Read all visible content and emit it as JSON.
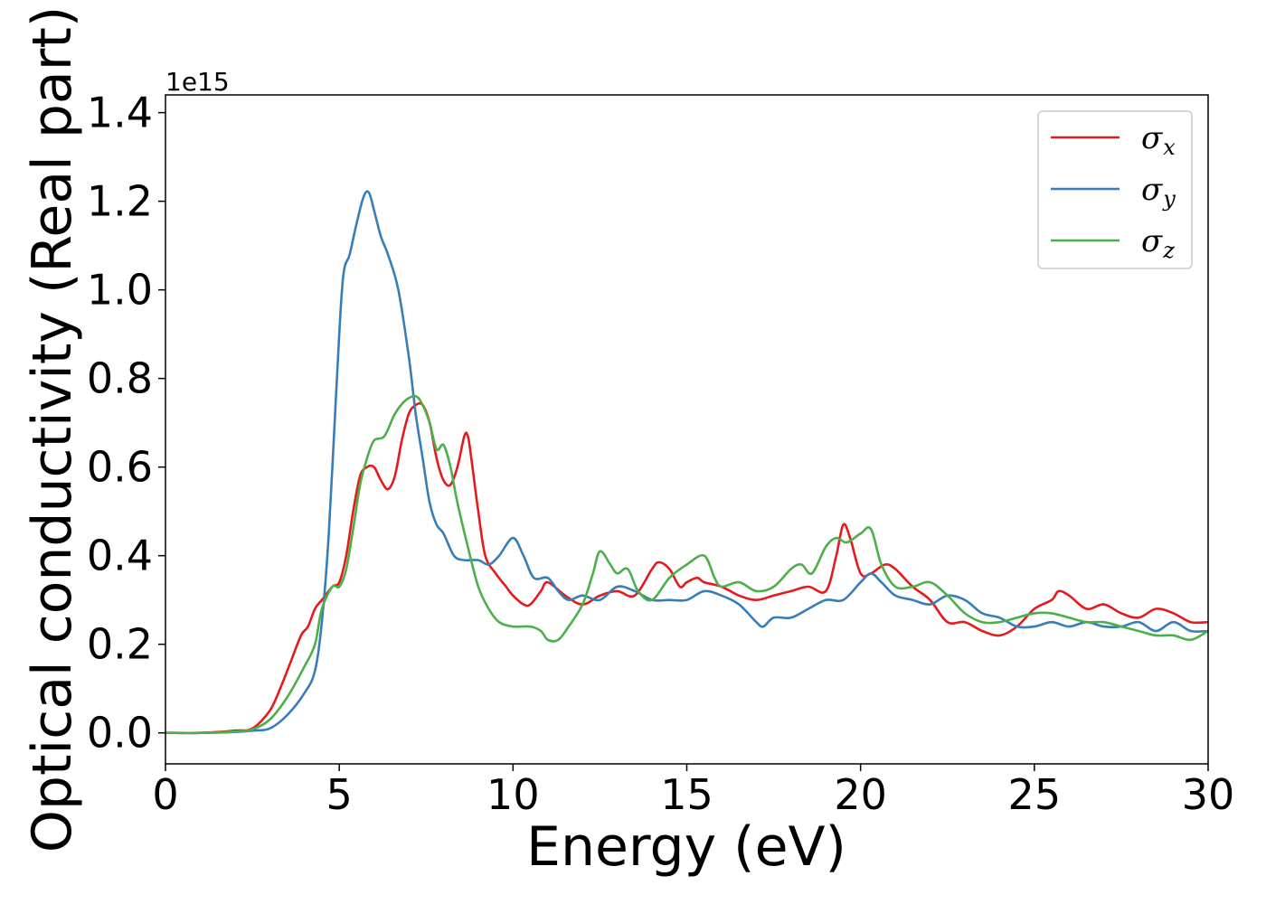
{
  "chart_data": {
    "type": "line",
    "xlabel": "Energy (eV)",
    "ylabel": "Optical conductivity (Real part)",
    "y_offset_label": "1e15",
    "xlim": [
      0,
      30
    ],
    "ylim": [
      -0.07,
      1.44
    ],
    "xticks": [
      0,
      5,
      10,
      15,
      20,
      25,
      30
    ],
    "xtick_labels": [
      "0",
      "5",
      "10",
      "15",
      "20",
      "25",
      "30"
    ],
    "yticks": [
      0.0,
      0.2,
      0.4,
      0.6,
      0.8,
      1.0,
      1.2,
      1.4
    ],
    "ytick_labels": [
      "0.0",
      "0.2",
      "0.4",
      "0.6",
      "0.8",
      "1.0",
      "1.2",
      "1.4"
    ],
    "grid": false,
    "legend_position": "top-right",
    "series": [
      {
        "name": "σx",
        "symbol": "σ",
        "subscript": "x",
        "color": "#e41a1c",
        "x": [
          0,
          1,
          2,
          2.5,
          3,
          3.3,
          3.6,
          3.9,
          4.1,
          4.3,
          4.5,
          4.8,
          5.0,
          5.2,
          5.4,
          5.6,
          5.8,
          6.0,
          6.2,
          6.4,
          6.6,
          6.8,
          7.0,
          7.2,
          7.4,
          7.6,
          7.8,
          8.0,
          8.2,
          8.4,
          8.6,
          8.7,
          8.8,
          9.0,
          9.2,
          9.5,
          9.8,
          10.0,
          10.3,
          10.5,
          10.8,
          11.0,
          11.5,
          12.0,
          12.5,
          13.0,
          13.5,
          14.0,
          14.2,
          14.5,
          14.8,
          15.0,
          15.3,
          15.5,
          16.0,
          16.5,
          17.0,
          17.5,
          18.0,
          18.5,
          19.0,
          19.3,
          19.5,
          19.7,
          20.0,
          20.3,
          20.7,
          21.0,
          21.5,
          22.0,
          22.5,
          23.0,
          23.5,
          24.0,
          24.5,
          25.0,
          25.5,
          25.7,
          26.0,
          26.5,
          27.0,
          27.5,
          28.0,
          28.5,
          29.0,
          29.5,
          30.0
        ],
        "values": [
          0.0,
          0.0,
          0.005,
          0.01,
          0.05,
          0.1,
          0.16,
          0.22,
          0.24,
          0.28,
          0.3,
          0.33,
          0.34,
          0.4,
          0.5,
          0.58,
          0.6,
          0.6,
          0.57,
          0.55,
          0.58,
          0.66,
          0.72,
          0.74,
          0.74,
          0.7,
          0.62,
          0.57,
          0.56,
          0.6,
          0.67,
          0.67,
          0.62,
          0.5,
          0.4,
          0.36,
          0.33,
          0.31,
          0.29,
          0.29,
          0.32,
          0.34,
          0.31,
          0.29,
          0.31,
          0.32,
          0.31,
          0.37,
          0.385,
          0.37,
          0.33,
          0.34,
          0.35,
          0.34,
          0.33,
          0.31,
          0.3,
          0.31,
          0.32,
          0.33,
          0.32,
          0.4,
          0.47,
          0.44,
          0.36,
          0.36,
          0.38,
          0.37,
          0.33,
          0.3,
          0.25,
          0.25,
          0.23,
          0.22,
          0.24,
          0.28,
          0.3,
          0.32,
          0.31,
          0.28,
          0.29,
          0.27,
          0.26,
          0.28,
          0.27,
          0.25,
          0.25
        ]
      },
      {
        "name": "σy",
        "symbol": "σ",
        "subscript": "y",
        "color": "#377eb8",
        "x": [
          0,
          1,
          2,
          2.5,
          3,
          3.5,
          4.0,
          4.3,
          4.5,
          4.7,
          4.9,
          5.1,
          5.3,
          5.5,
          5.7,
          5.85,
          6.0,
          6.2,
          6.4,
          6.7,
          7.0,
          7.2,
          7.4,
          7.6,
          7.8,
          8.0,
          8.3,
          8.6,
          9.0,
          9.3,
          9.6,
          10.0,
          10.3,
          10.6,
          11.0,
          11.3,
          11.6,
          12.0,
          12.5,
          13.0,
          13.5,
          14.0,
          14.5,
          15.0,
          15.5,
          16.0,
          16.5,
          17.0,
          17.2,
          17.5,
          18.0,
          18.5,
          19.0,
          19.5,
          20.0,
          20.3,
          20.6,
          21.0,
          21.5,
          22.0,
          22.5,
          23.0,
          23.5,
          24.0,
          24.5,
          25.0,
          25.5,
          26.0,
          26.5,
          27.0,
          27.5,
          28.0,
          28.5,
          29.0,
          29.5,
          30.0
        ],
        "values": [
          0.0,
          0.0,
          0.002,
          0.005,
          0.01,
          0.04,
          0.09,
          0.14,
          0.25,
          0.45,
          0.75,
          1.02,
          1.08,
          1.15,
          1.21,
          1.22,
          1.18,
          1.12,
          1.08,
          1.0,
          0.85,
          0.72,
          0.62,
          0.52,
          0.47,
          0.45,
          0.4,
          0.39,
          0.39,
          0.38,
          0.4,
          0.44,
          0.4,
          0.35,
          0.35,
          0.32,
          0.3,
          0.31,
          0.3,
          0.33,
          0.32,
          0.3,
          0.3,
          0.3,
          0.32,
          0.31,
          0.29,
          0.25,
          0.24,
          0.26,
          0.26,
          0.28,
          0.3,
          0.3,
          0.34,
          0.36,
          0.34,
          0.31,
          0.3,
          0.29,
          0.31,
          0.3,
          0.27,
          0.26,
          0.24,
          0.24,
          0.25,
          0.24,
          0.25,
          0.24,
          0.24,
          0.25,
          0.23,
          0.25,
          0.23,
          0.23
        ]
      },
      {
        "name": "σz",
        "symbol": "σ",
        "subscript": "z",
        "color": "#4daf4a",
        "x": [
          0,
          1,
          2,
          2.5,
          3,
          3.5,
          4.0,
          4.3,
          4.5,
          4.8,
          5.0,
          5.2,
          5.4,
          5.6,
          5.8,
          6.0,
          6.3,
          6.6,
          6.9,
          7.2,
          7.4,
          7.6,
          7.8,
          8.0,
          8.2,
          8.4,
          8.7,
          9.0,
          9.3,
          9.6,
          10.0,
          10.5,
          10.8,
          11.0,
          11.3,
          11.6,
          12.0,
          12.3,
          12.5,
          12.8,
          13.0,
          13.3,
          13.6,
          14.0,
          14.5,
          15.0,
          15.5,
          15.8,
          16.0,
          16.5,
          17.0,
          17.5,
          18.0,
          18.3,
          18.6,
          19.0,
          19.3,
          19.6,
          20.0,
          20.3,
          20.6,
          21.0,
          21.5,
          22.0,
          22.5,
          23.0,
          23.5,
          24.0,
          24.5,
          25.0,
          25.5,
          26.0,
          26.5,
          27.0,
          27.5,
          28.0,
          28.5,
          29.0,
          29.5,
          30.0
        ],
        "values": [
          0.0,
          0.0,
          0.003,
          0.008,
          0.03,
          0.08,
          0.15,
          0.2,
          0.28,
          0.33,
          0.33,
          0.37,
          0.46,
          0.56,
          0.62,
          0.66,
          0.67,
          0.72,
          0.75,
          0.76,
          0.74,
          0.7,
          0.64,
          0.65,
          0.6,
          0.52,
          0.42,
          0.33,
          0.28,
          0.25,
          0.24,
          0.24,
          0.23,
          0.21,
          0.21,
          0.24,
          0.29,
          0.36,
          0.41,
          0.38,
          0.36,
          0.37,
          0.32,
          0.3,
          0.35,
          0.38,
          0.4,
          0.35,
          0.33,
          0.34,
          0.32,
          0.33,
          0.37,
          0.38,
          0.36,
          0.42,
          0.44,
          0.43,
          0.45,
          0.46,
          0.38,
          0.33,
          0.33,
          0.34,
          0.31,
          0.27,
          0.25,
          0.25,
          0.26,
          0.27,
          0.27,
          0.26,
          0.25,
          0.25,
          0.24,
          0.23,
          0.22,
          0.22,
          0.21,
          0.23
        ]
      }
    ]
  }
}
